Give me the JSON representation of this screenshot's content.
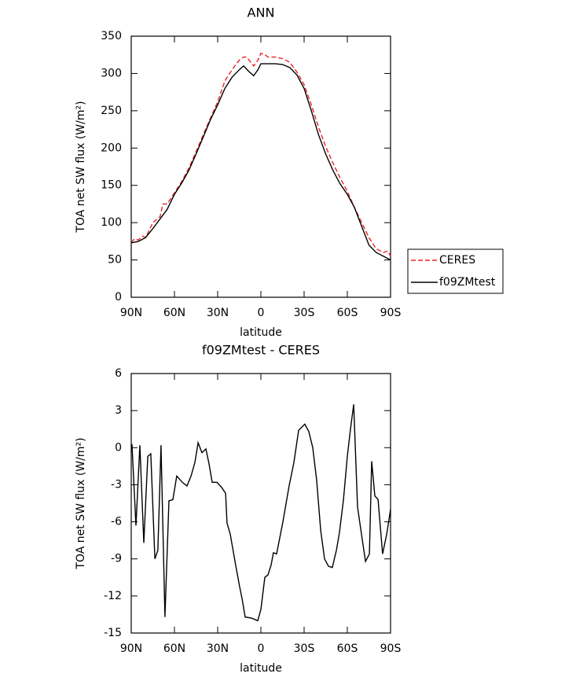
{
  "chart_data": [
    {
      "type": "line",
      "title": "ANN",
      "xlabel": "latitude",
      "ylabel": "TOA net SW flux (W/m²)",
      "xlim": [
        90,
        -90
      ],
      "xticks": [
        {
          "value": 90,
          "label": "90N"
        },
        {
          "value": 60,
          "label": "60N"
        },
        {
          "value": 30,
          "label": "30N"
        },
        0,
        {
          "value": -30,
          "label": "30S"
        },
        {
          "value": -60,
          "label": "60S"
        },
        {
          "value": -90,
          "label": "90S"
        }
      ],
      "ylim": [
        0,
        350
      ],
      "yticks": [
        0,
        50,
        100,
        150,
        200,
        250,
        300,
        350
      ],
      "legend": "right",
      "series": [
        {
          "name": "CERES",
          "color": "#e8242a",
          "dashed": true,
          "x": [
            90,
            88,
            85,
            82,
            80,
            75,
            70,
            68,
            65,
            60,
            55,
            50,
            45,
            40,
            35,
            30,
            25,
            20,
            15,
            12,
            10,
            7,
            5,
            2,
            0,
            -3,
            -5,
            -10,
            -15,
            -20,
            -25,
            -30,
            -35,
            -40,
            -45,
            -50,
            -55,
            -60,
            -65,
            -70,
            -75,
            -80,
            -85,
            -88,
            -90
          ],
          "values": [
            73,
            78,
            77,
            82,
            80,
            100,
            108,
            125,
            125,
            140,
            155,
            173,
            195,
            218,
            240,
            262,
            290,
            305,
            318,
            322,
            322,
            315,
            310,
            318,
            327,
            325,
            322,
            322,
            320,
            315,
            302,
            285,
            258,
            228,
            202,
            180,
            160,
            142,
            120,
            100,
            80,
            65,
            60,
            62,
            55
          ]
        },
        {
          "name": "f09ZMtest",
          "color": "#000000",
          "dashed": false,
          "x": [
            90,
            85,
            80,
            75,
            70,
            65,
            60,
            55,
            50,
            45,
            40,
            35,
            30,
            25,
            20,
            15,
            12,
            8,
            5,
            2,
            0,
            -5,
            -10,
            -15,
            -20,
            -25,
            -30,
            -35,
            -40,
            -45,
            -50,
            -55,
            -60,
            -65,
            -70,
            -75,
            -80,
            -85,
            -90
          ],
          "values": [
            73,
            75,
            80,
            92,
            105,
            118,
            138,
            153,
            170,
            192,
            215,
            238,
            258,
            280,
            295,
            305,
            310,
            302,
            297,
            305,
            313,
            313,
            313,
            312,
            308,
            298,
            280,
            250,
            218,
            192,
            170,
            152,
            138,
            120,
            95,
            70,
            60,
            55,
            50
          ]
        }
      ]
    },
    {
      "type": "line",
      "title": "f09ZMtest - CERES",
      "xlabel": "latitude",
      "ylabel": "TOA net SW flux (W/m²)",
      "xlim": [
        90,
        -90
      ],
      "xticks": [
        {
          "value": 90,
          "label": "90N"
        },
        {
          "value": 60,
          "label": "60N"
        },
        {
          "value": 30,
          "label": "30N"
        },
        0,
        {
          "value": -30,
          "label": "30S"
        },
        {
          "value": -60,
          "label": "60S"
        },
        {
          "value": -90,
          "label": "90S"
        }
      ],
      "ylim": [
        -15,
        6
      ],
      "yticks": [
        -15,
        -12,
        -9,
        -6,
        -3,
        0,
        3,
        6
      ],
      "series": [
        {
          "color": "#000000",
          "dashed": false,
          "x": [
            89.5,
            86.7,
            84,
            81.3,
            78.5,
            76.4,
            73.6,
            71.5,
            69.3,
            66.6,
            63.8,
            61.1,
            58.4,
            54.5,
            51.3,
            48.5,
            45.8,
            43.6,
            40.9,
            38.2,
            36,
            33.8,
            30.5,
            27.3,
            24.5,
            23.5,
            21.3,
            17.5,
            14.7,
            13.1,
            10.9,
            6.5,
            2.2,
            0,
            -2.7,
            -4.9,
            -7.1,
            -8.7,
            -10.9,
            -15.3,
            -19.6,
            -22.9,
            -26.2,
            -30.5,
            -33.3,
            -36,
            -38.7,
            -41.5,
            -44.2,
            -46.9,
            -49.6,
            -52.4,
            -54.5,
            -57.3,
            -60,
            -62.2,
            -64.4,
            -67.1,
            -69.8,
            -72.6,
            -75.3,
            -76.9,
            -79.1,
            -81.3,
            -84.5,
            -87.3,
            -90
          ],
          "values": [
            0.3,
            -6.3,
            0.2,
            -7.7,
            -0.7,
            -0.5,
            -9,
            -8.3,
            0.2,
            -13.7,
            -4.3,
            -4.2,
            -2.3,
            -2.8,
            -3.1,
            -2.3,
            -1.2,
            0.4,
            -0.4,
            -0.1,
            -1.3,
            -2.8,
            -2.8,
            -3.2,
            -3.7,
            -6.1,
            -7,
            -9.5,
            -11.3,
            -12.2,
            -13.7,
            -13.8,
            -14,
            -13.1,
            -10.5,
            -10.3,
            -9.5,
            -8.5,
            -8.6,
            -6,
            -3.1,
            -1.2,
            1.4,
            1.9,
            1.3,
            0,
            -2.6,
            -6.7,
            -9,
            -9.6,
            -9.7,
            -8.3,
            -6.9,
            -4.2,
            -0.7,
            1.5,
            3.5,
            -4.8,
            -7,
            -9.2,
            -8.6,
            -1.1,
            -3.9,
            -4.2,
            -8.6,
            -7,
            -5
          ]
        }
      ]
    }
  ]
}
